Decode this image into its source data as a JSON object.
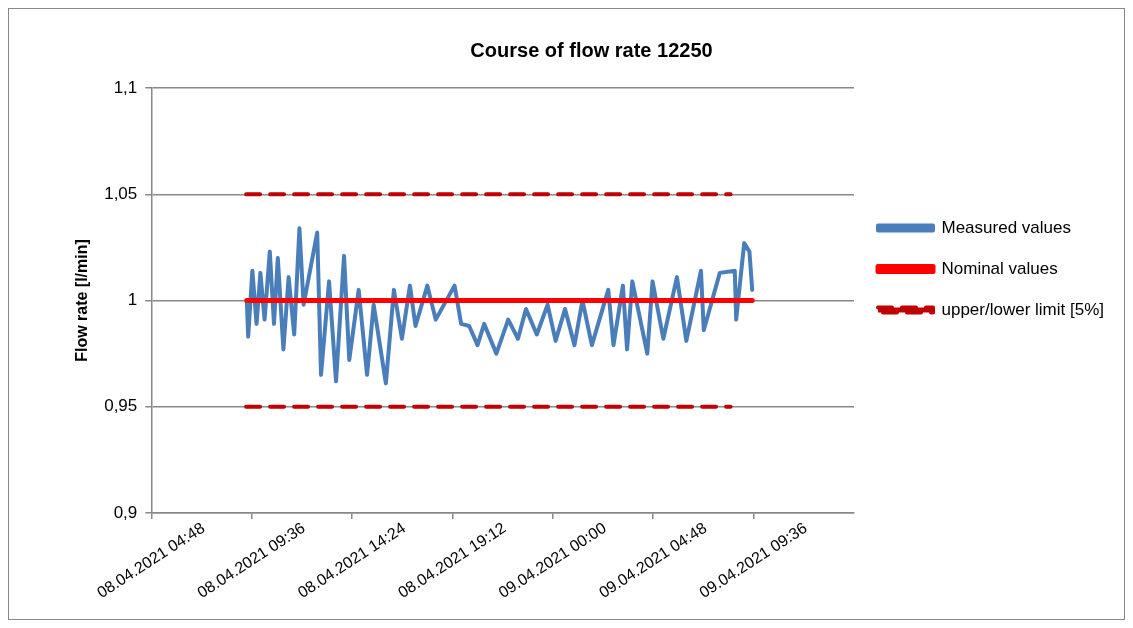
{
  "chart_data": {
    "type": "line",
    "title": "Course of flow rate 12250",
    "ylabel": "Flow rate [l/min]",
    "xlim": [
      "2021-04-08T04:48",
      "2021-04-09T14:24"
    ],
    "xticks": [
      {
        "value": "2021-04-08T04:48",
        "label": "08.04.2021 04:48"
      },
      {
        "value": "2021-04-08T09:36",
        "label": "08.04.2021 09:36"
      },
      {
        "value": "2021-04-08T14:24",
        "label": "08.04.2021 14:24"
      },
      {
        "value": "2021-04-08T19:12",
        "label": "08.04.2021 19:12"
      },
      {
        "value": "2021-04-09T00:00",
        "label": "09.04.2021 00:00"
      },
      {
        "value": "2021-04-09T04:48",
        "label": "09.04.2021 04:48"
      },
      {
        "value": "2021-04-09T09:36",
        "label": "09.04.2021 09:36"
      }
    ],
    "ylim": [
      0.9,
      1.1
    ],
    "yticks": [
      {
        "value": 0.9,
        "label": "0,9"
      },
      {
        "value": 0.95,
        "label": "0,95"
      },
      {
        "value": 1,
        "label": "1"
      },
      {
        "value": 1.05,
        "label": "1,05"
      },
      {
        "value": 1.1,
        "label": "1,1"
      }
    ],
    "grid": "y",
    "legend": "right",
    "marker": "none",
    "series": [
      {
        "name": "Measured values",
        "color": "#4a7ebb",
        "line_style": "solid",
        "x": [
          "2021-04-08T09:22",
          "2021-04-08T09:26",
          "2021-04-08T09:38",
          "2021-04-08T09:50",
          "2021-04-08T10:01",
          "2021-04-08T10:13",
          "2021-04-08T10:28",
          "2021-04-08T10:40",
          "2021-04-08T10:51",
          "2021-04-08T11:07",
          "2021-04-08T11:22",
          "2021-04-08T11:38",
          "2021-04-08T11:53",
          "2021-04-08T12:05",
          "2021-04-08T12:44",
          "2021-04-08T12:55",
          "2021-04-08T13:18",
          "2021-04-08T13:38",
          "2021-04-08T14:01",
          "2021-04-08T14:16",
          "2021-04-08T14:43",
          "2021-04-08T15:07",
          "2021-04-08T15:26",
          "2021-04-08T16:01",
          "2021-04-08T16:24",
          "2021-04-08T16:47",
          "2021-04-08T17:10",
          "2021-04-08T17:26",
          "2021-04-08T18:00",
          "2021-04-08T18:24",
          "2021-04-08T19:18",
          "2021-04-08T19:37",
          "2021-04-08T20:00",
          "2021-04-08T20:24",
          "2021-04-08T20:43",
          "2021-04-08T21:18",
          "2021-04-08T21:52",
          "2021-04-08T22:20",
          "2021-04-08T22:43",
          "2021-04-08T23:14",
          "2021-04-08T23:45",
          "2021-04-09T00:08",
          "2021-04-09T00:35",
          "2021-04-09T01:02",
          "2021-04-09T01:25",
          "2021-04-09T01:52",
          "2021-04-09T02:39",
          "2021-04-09T02:54",
          "2021-04-09T03:21",
          "2021-04-09T03:33",
          "2021-04-09T03:48",
          "2021-04-09T04:31",
          "2021-04-09T04:46",
          "2021-04-09T05:17",
          "2021-04-09T05:56",
          "2021-04-09T06:23",
          "2021-04-09T07:05",
          "2021-04-09T07:13",
          "2021-04-09T07:59",
          "2021-04-09T08:42",
          "2021-04-09T08:46",
          "2021-04-09T09:09",
          "2021-04-09T09:24",
          "2021-04-09T09:32"
        ],
        "values": [
          1.0,
          0.983,
          1.014,
          0.989,
          1.013,
          0.991,
          1.023,
          0.989,
          1.02,
          0.977,
          1.011,
          0.984,
          1.034,
          0.998,
          1.032,
          0.965,
          1.009,
          0.962,
          1.021,
          0.972,
          1.005,
          0.965,
          0.998,
          0.961,
          1.005,
          0.982,
          1.007,
          0.988,
          1.007,
          0.991,
          1.007,
          0.989,
          0.988,
          0.979,
          0.989,
          0.975,
          0.991,
          0.982,
          0.996,
          0.984,
          0.998,
          0.981,
          0.996,
          0.979,
          1.0,
          0.979,
          1.005,
          0.979,
          1.007,
          0.977,
          1.009,
          0.975,
          1.009,
          0.982,
          1.011,
          0.981,
          1.014,
          0.986,
          1.013,
          1.014,
          0.991,
          1.027,
          1.023,
          1.005
        ]
      },
      {
        "name": "Nominal values",
        "color": "#ff0000",
        "line_style": "solid",
        "x": [
          "2021-04-08T09:22",
          "2021-04-09T09:32"
        ],
        "values": [
          1,
          1
        ]
      },
      {
        "name": "upper/lower limit [5%]",
        "color": "#c00000",
        "line_style": "dashed",
        "x": [
          "2021-04-08T09:20",
          "2021-04-09T08:30"
        ],
        "values": [
          1.05,
          1.05
        ]
      },
      {
        "color": "#c00000",
        "line_style": "dashed",
        "x": [
          "2021-04-08T09:20",
          "2021-04-09T08:30"
        ],
        "values": [
          0.95,
          0.95
        ]
      }
    ]
  }
}
